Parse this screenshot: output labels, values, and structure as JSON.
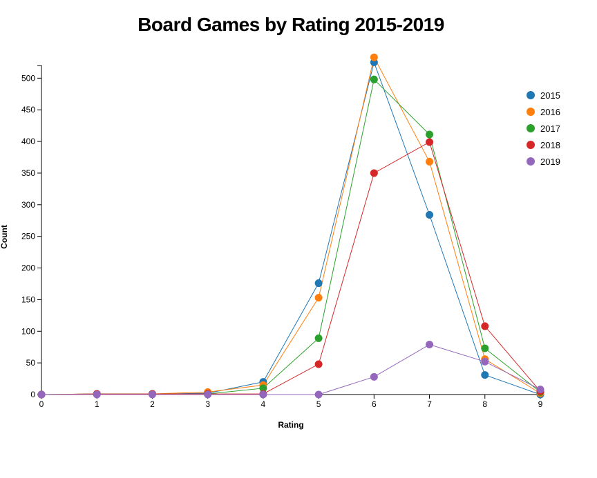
{
  "chart_data": {
    "type": "line",
    "title": "Board Games by Rating 2015-2019",
    "xlabel": "Rating",
    "ylabel": "Count",
    "x": [
      0,
      1,
      2,
      3,
      4,
      5,
      6,
      7,
      8,
      9
    ],
    "xlim": [
      0,
      9
    ],
    "ylim": [
      0,
      520
    ],
    "yticks": [
      0,
      50,
      100,
      150,
      200,
      250,
      300,
      350,
      400,
      450,
      500
    ],
    "grid": false,
    "legend_position": "right",
    "series": [
      {
        "name": "2015",
        "color": "#1f77b4",
        "values": [
          0,
          1,
          1,
          2,
          20,
          176,
          525,
          284,
          31,
          0
        ]
      },
      {
        "name": "2016",
        "color": "#ff7f0e",
        "values": [
          0,
          1,
          1,
          4,
          15,
          153,
          533,
          368,
          56,
          2
        ]
      },
      {
        "name": "2017",
        "color": "#2ca02c",
        "values": [
          0,
          1,
          1,
          1,
          10,
          89,
          498,
          411,
          73,
          4
        ]
      },
      {
        "name": "2018",
        "color": "#d62728",
        "values": [
          0,
          1,
          1,
          1,
          1,
          48,
          350,
          399,
          108,
          5
        ]
      },
      {
        "name": "2019",
        "color": "#9467bd",
        "values": [
          0,
          0,
          0,
          0,
          0,
          0,
          28,
          79,
          52,
          8
        ]
      }
    ]
  }
}
